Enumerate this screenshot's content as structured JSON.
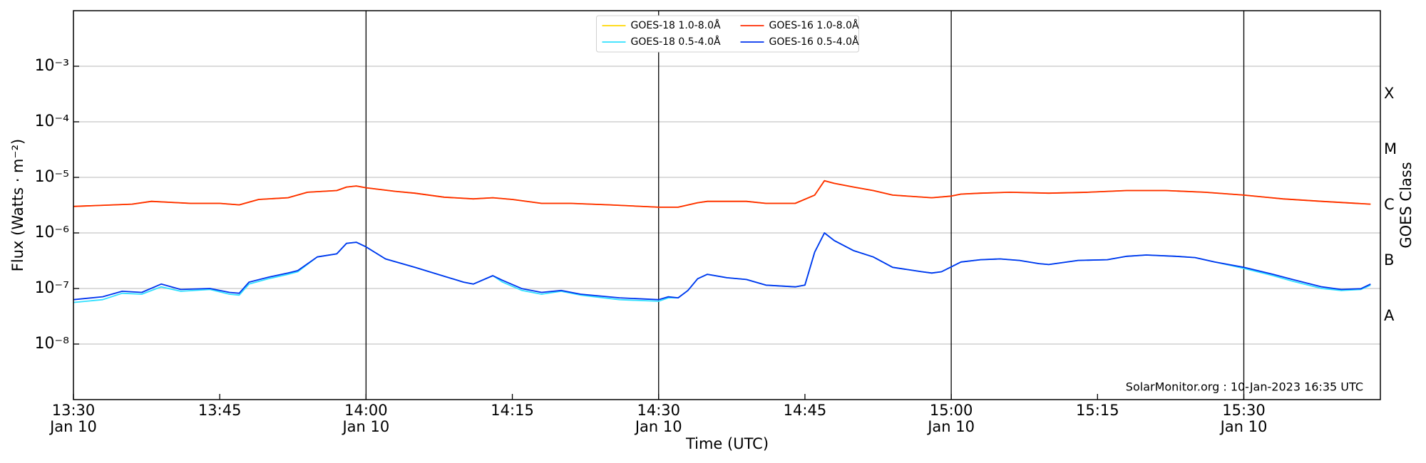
{
  "chart_data": {
    "type": "line",
    "ylabel": "Flux (Watts · m⁻²)",
    "xlabel": "Time (UTC)",
    "y2label": "GOES Class",
    "annotation": "SolarMonitor.org : 10-Jan-2023 16:35 UTC",
    "log_y": true,
    "grid": true,
    "legend": "upper center",
    "xlim": [
      "13:30",
      "15:44"
    ],
    "xticks": [
      {
        "value": "13:30",
        "label": "13:30\nJan 10"
      },
      "13:45",
      {
        "value": "14:00",
        "label": "14:00\nJan 10"
      },
      "14:15",
      {
        "value": "14:30",
        "label": "14:30\nJan 10"
      },
      "14:45",
      {
        "value": "15:00",
        "label": "15:00\nJan 10"
      },
      "15:15",
      {
        "value": "15:30",
        "label": "15:30\nJan 10"
      }
    ],
    "vlines": [
      "14:00",
      "14:30",
      "15:00",
      "15:30"
    ],
    "ylim": [
      1e-09,
      0.01
    ],
    "yticks": [
      {
        "value": 1e-08,
        "label": "10⁻⁸"
      },
      {
        "value": 1e-07,
        "label": "10⁻⁷"
      },
      {
        "value": 1e-06,
        "label": "10⁻⁶"
      },
      {
        "value": 1e-05,
        "label": "10⁻⁵"
      },
      {
        "value": 0.0001,
        "label": "10⁻⁴"
      },
      {
        "value": 0.001,
        "label": "10⁻³"
      }
    ],
    "y2ticks": [
      {
        "value": 1e-08,
        "label": "A"
      },
      {
        "value": 1e-07,
        "label": "B"
      },
      {
        "value": 1e-06,
        "label": "C"
      },
      {
        "value": 1e-05,
        "label": "M"
      },
      {
        "value": 0.0001,
        "label": "X"
      }
    ],
    "series": [
      {
        "name": "GOES-18 1.0-8.0Å",
        "color": "#ffd700",
        "x": [
          "13:30",
          "13:36",
          "13:38",
          "13:42",
          "13:45",
          "13:47",
          "13:49",
          "13:52",
          "13:54",
          "13:57",
          "13:58",
          "13:59",
          "14:00",
          "14:03",
          "14:05",
          "14:08",
          "14:11",
          "14:13",
          "14:15",
          "14:18",
          "14:21",
          "14:25",
          "14:30",
          "14:32",
          "14:34",
          "14:35",
          "14:39",
          "14:41",
          "14:44",
          "14:46",
          "14:47",
          "14:48",
          "14:50",
          "14:52",
          "14:54",
          "14:58",
          "15:00",
          "15:01",
          "15:03",
          "15:06",
          "15:10",
          "15:14",
          "15:18",
          "15:22",
          "15:26",
          "15:30",
          "15:34",
          "15:38",
          "15:43"
        ],
        "values": [
          3e-06,
          3.3e-06,
          3.7e-06,
          3.4e-06,
          3.4e-06,
          3.2e-06,
          4e-06,
          4.3e-06,
          5.4e-06,
          5.8e-06,
          6.7e-06,
          7e-06,
          6.5e-06,
          5.6e-06,
          5.2e-06,
          4.4e-06,
          4.1e-06,
          4.3e-06,
          4e-06,
          3.4e-06,
          3.4e-06,
          3.2e-06,
          2.9e-06,
          2.9e-06,
          3.5e-06,
          3.7e-06,
          3.7e-06,
          3.4e-06,
          3.4e-06,
          4.8e-06,
          8.7e-06,
          7.8e-06,
          6.7e-06,
          5.8e-06,
          4.8e-06,
          4.3e-06,
          4.6e-06,
          5e-06,
          5.2e-06,
          5.4e-06,
          5.2e-06,
          5.4e-06,
          5.8e-06,
          5.8e-06,
          5.4e-06,
          4.8e-06,
          4.1e-06,
          3.7e-06,
          3.3e-06
        ]
      },
      {
        "name": "GOES-18 0.5-4.0Å",
        "color": "#30e0ff",
        "x": [
          "13:30",
          "13:33",
          "13:35",
          "13:37",
          "13:39",
          "13:41",
          "13:44",
          "13:46",
          "13:47",
          "13:48",
          "13:50",
          "13:52",
          "13:53",
          "13:55",
          "13:57",
          "13:58",
          "13:59",
          "14:00",
          "14:02",
          "14:05",
          "14:10",
          "14:11",
          "14:13",
          "14:14",
          "14:16",
          "14:18",
          "14:20",
          "14:22",
          "14:26",
          "14:30",
          "14:31",
          "14:32",
          "14:33",
          "14:34",
          "14:35",
          "14:37",
          "14:39",
          "14:41",
          "14:44",
          "14:45",
          "14:46",
          "14:47",
          "14:48",
          "14:50",
          "14:52",
          "14:54",
          "14:57",
          "14:58",
          "14:59",
          "15:01",
          "15:03",
          "15:05",
          "15:07",
          "15:09",
          "15:10",
          "15:13",
          "15:16",
          "15:18",
          "15:20",
          "15:23",
          "15:25",
          "15:27",
          "15:30",
          "15:33",
          "15:35",
          "15:38",
          "15:40",
          "15:42",
          "15:43"
        ],
        "values": [
          5.6e-08,
          6.3e-08,
          8.2e-08,
          7.9e-08,
          1.07e-07,
          8.9e-08,
          9.6e-08,
          7.9e-08,
          7.6e-08,
          1.2e-07,
          1.5e-07,
          1.8e-07,
          2e-07,
          3.7e-07,
          4.2e-07,
          6.5e-07,
          6.8e-07,
          5.6e-07,
          3.4e-07,
          2.4e-07,
          1.3e-07,
          1.2e-07,
          1.7e-07,
          1.3e-07,
          9.2e-08,
          7.9e-08,
          8.9e-08,
          7.6e-08,
          6.3e-08,
          5.9e-08,
          6.8e-08,
          6.8e-08,
          9.2e-08,
          1.5e-07,
          1.8e-07,
          1.56e-07,
          1.45e-07,
          1.15e-07,
          1.07e-07,
          1.15e-07,
          4.5e-07,
          1e-06,
          7.3e-07,
          4.8e-07,
          3.7e-07,
          2.4e-07,
          2e-07,
          1.9e-07,
          2e-07,
          3e-07,
          3.3e-07,
          3.4e-07,
          3.2e-07,
          2.8e-07,
          2.7e-07,
          3.2e-07,
          3.3e-07,
          3.8e-07,
          4e-07,
          3.8e-07,
          3.6e-07,
          3e-07,
          2.3e-07,
          1.7e-07,
          1.35e-07,
          1e-07,
          9.2e-08,
          9.6e-08,
          1.15e-07
        ]
      },
      {
        "name": "GOES-16 1.0-8.0Å",
        "color": "#ff2a00",
        "x": [
          "13:30",
          "13:36",
          "13:38",
          "13:42",
          "13:45",
          "13:47",
          "13:49",
          "13:52",
          "13:54",
          "13:57",
          "13:58",
          "13:59",
          "14:00",
          "14:03",
          "14:05",
          "14:08",
          "14:11",
          "14:13",
          "14:15",
          "14:18",
          "14:21",
          "14:25",
          "14:30",
          "14:32",
          "14:34",
          "14:35",
          "14:39",
          "14:41",
          "14:44",
          "14:46",
          "14:47",
          "14:48",
          "14:50",
          "14:52",
          "14:54",
          "14:58",
          "15:00",
          "15:01",
          "15:03",
          "15:06",
          "15:10",
          "15:14",
          "15:18",
          "15:22",
          "15:26",
          "15:30",
          "15:34",
          "15:38",
          "15:43"
        ],
        "values": [
          3e-06,
          3.3e-06,
          3.7e-06,
          3.4e-06,
          3.4e-06,
          3.2e-06,
          4e-06,
          4.3e-06,
          5.4e-06,
          5.8e-06,
          6.7e-06,
          7e-06,
          6.5e-06,
          5.6e-06,
          5.2e-06,
          4.4e-06,
          4.1e-06,
          4.3e-06,
          4e-06,
          3.4e-06,
          3.4e-06,
          3.2e-06,
          2.9e-06,
          2.9e-06,
          3.5e-06,
          3.7e-06,
          3.7e-06,
          3.4e-06,
          3.4e-06,
          4.8e-06,
          8.7e-06,
          7.8e-06,
          6.7e-06,
          5.8e-06,
          4.8e-06,
          4.3e-06,
          4.6e-06,
          5e-06,
          5.2e-06,
          5.4e-06,
          5.2e-06,
          5.4e-06,
          5.8e-06,
          5.8e-06,
          5.4e-06,
          4.8e-06,
          4.1e-06,
          3.7e-06,
          3.3e-06
        ]
      },
      {
        "name": "GOES-16 0.5-4.0Å",
        "color": "#0033ee",
        "x": [
          "13:30",
          "13:33",
          "13:35",
          "13:37",
          "13:39",
          "13:41",
          "13:44",
          "13:46",
          "13:47",
          "13:48",
          "13:50",
          "13:52",
          "13:53",
          "13:55",
          "13:57",
          "13:58",
          "13:59",
          "14:00",
          "14:02",
          "14:05",
          "14:10",
          "14:11",
          "14:13",
          "14:14",
          "14:16",
          "14:18",
          "14:20",
          "14:22",
          "14:26",
          "14:30",
          "14:31",
          "14:32",
          "14:33",
          "14:34",
          "14:35",
          "14:37",
          "14:39",
          "14:41",
          "14:44",
          "14:45",
          "14:46",
          "14:47",
          "14:48",
          "14:50",
          "14:52",
          "14:54",
          "14:57",
          "14:58",
          "14:59",
          "15:01",
          "15:03",
          "15:05",
          "15:07",
          "15:09",
          "15:10",
          "15:13",
          "15:16",
          "15:18",
          "15:20",
          "15:23",
          "15:25",
          "15:27",
          "15:30",
          "15:33",
          "15:35",
          "15:38",
          "15:40",
          "15:42",
          "15:43"
        ],
        "values": [
          6.3e-08,
          7.1e-08,
          8.9e-08,
          8.5e-08,
          1.2e-07,
          9.6e-08,
          1e-07,
          8.5e-08,
          8.2e-08,
          1.3e-07,
          1.6e-07,
          1.9e-07,
          2.1e-07,
          3.7e-07,
          4.2e-07,
          6.5e-07,
          6.8e-07,
          5.6e-07,
          3.4e-07,
          2.4e-07,
          1.3e-07,
          1.2e-07,
          1.7e-07,
          1.4e-07,
          9.9e-08,
          8.5e-08,
          9.2e-08,
          7.9e-08,
          6.8e-08,
          6.3e-08,
          7.1e-08,
          6.8e-08,
          9.2e-08,
          1.5e-07,
          1.8e-07,
          1.56e-07,
          1.45e-07,
          1.15e-07,
          1.07e-07,
          1.15e-07,
          4.5e-07,
          1e-06,
          7.3e-07,
          4.8e-07,
          3.7e-07,
          2.4e-07,
          2e-07,
          1.9e-07,
          2e-07,
          3e-07,
          3.3e-07,
          3.4e-07,
          3.2e-07,
          2.8e-07,
          2.7e-07,
          3.2e-07,
          3.3e-07,
          3.8e-07,
          4e-07,
          3.8e-07,
          3.6e-07,
          3e-07,
          2.4e-07,
          1.8e-07,
          1.45e-07,
          1.07e-07,
          9.6e-08,
          9.9e-08,
          1.2e-07
        ]
      }
    ]
  }
}
